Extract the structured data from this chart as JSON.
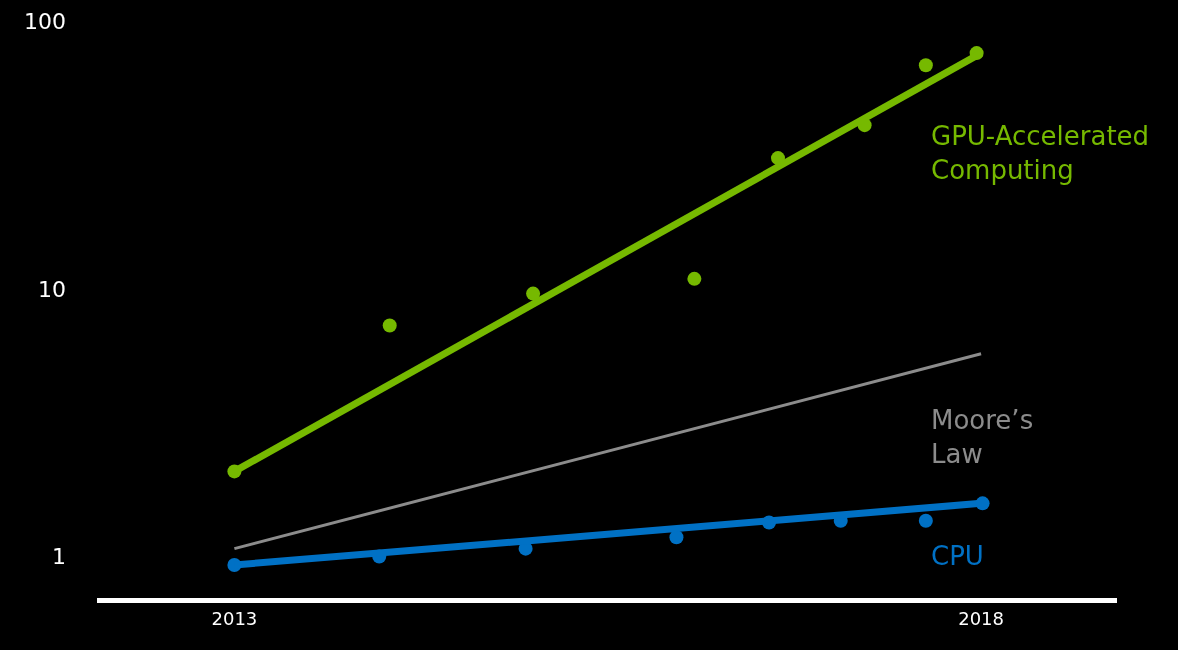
{
  "chart_data": {
    "type": "line",
    "log": "y",
    "grid": false,
    "xlim": [
      2012.08,
      2018.91
    ],
    "xticks": [
      2013,
      2018
    ],
    "ylim": [
      0.7,
      120
    ],
    "yticks": [
      1,
      10,
      100
    ],
    "series": [
      {
        "type": "scatter",
        "marker": "circle",
        "color": "#76b900",
        "x": [
          2013,
          2014.04,
          2015.0,
          2016.08,
          2016.64,
          2017.22,
          2017.63,
          2017.97
        ],
        "values": [
          2.08,
          7.3,
          9.6,
          10.9,
          30.8,
          40.9,
          68.5,
          76
        ]
      },
      {
        "name": "GPU-Accelerated Computing",
        "color": "#76b900",
        "x": [
          2013,
          2018
        ],
        "values": [
          2.08,
          76
        ]
      },
      {
        "name": "Moore’s Law",
        "color": "#8c8c8c",
        "x": [
          2013,
          2018
        ],
        "values": [
          1.07,
          5.72
        ]
      },
      {
        "type": "scatter",
        "marker": "circle",
        "color": "#0071c5",
        "x": [
          2013,
          2013.97,
          2014.95,
          2015.96,
          2016.58,
          2017.06,
          2017.63,
          2018.01
        ],
        "values": [
          0.93,
          1.0,
          1.07,
          1.18,
          1.34,
          1.36,
          1.36,
          1.58
        ]
      },
      {
        "name": "CPU",
        "color": "#0071c5",
        "x": [
          2013,
          2018
        ],
        "values": [
          0.93,
          1.58
        ]
      }
    ]
  }
}
